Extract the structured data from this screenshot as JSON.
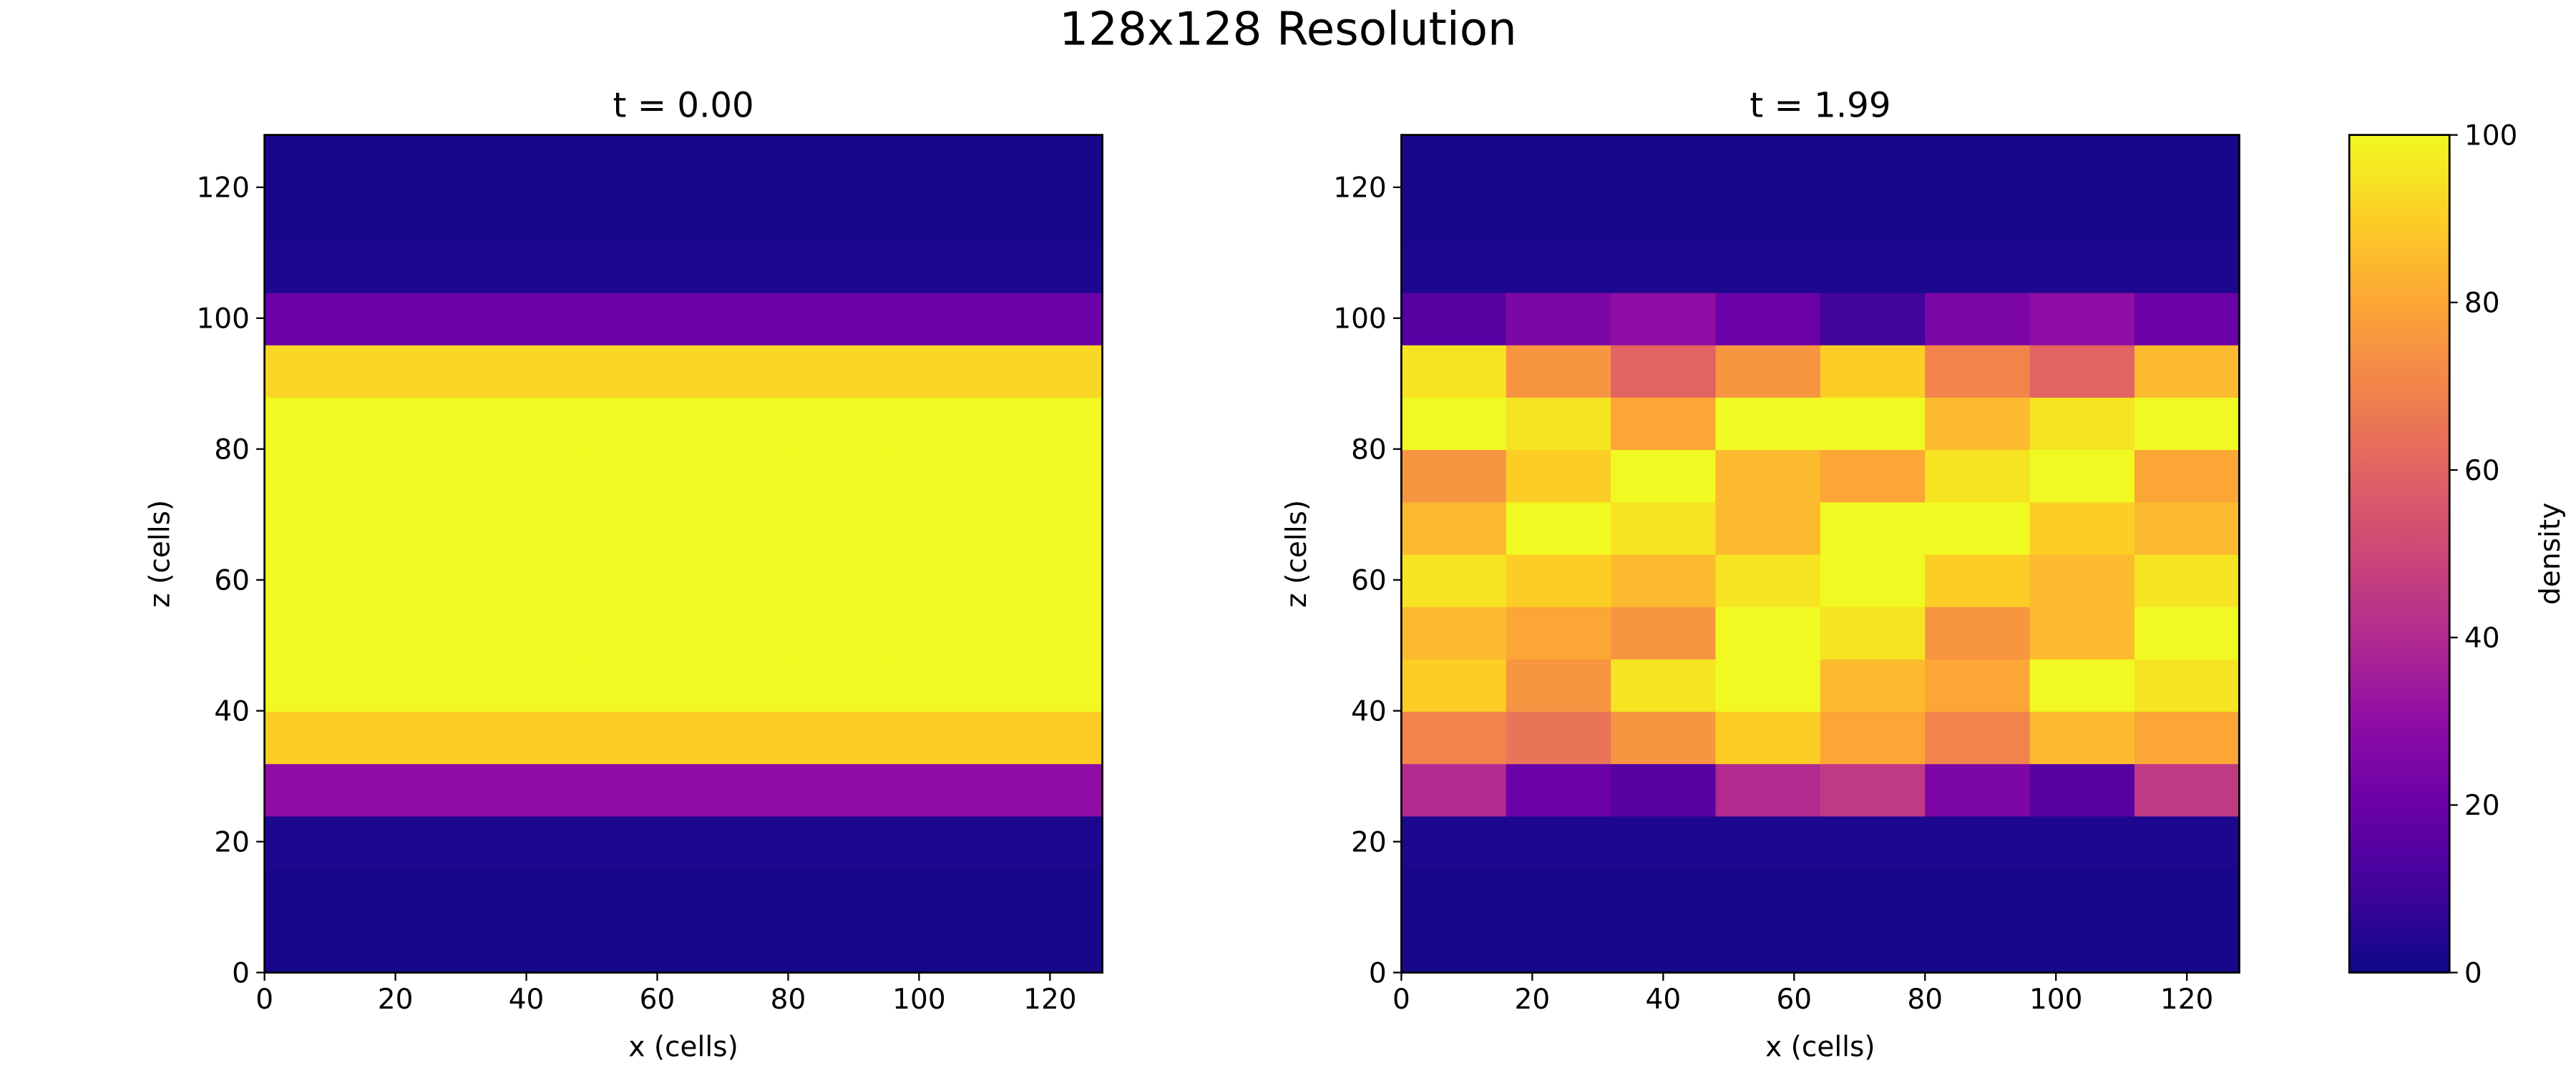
{
  "title": "128x128 Resolution",
  "colorbar": {
    "label": "density",
    "colormap": "plasma",
    "lim": [
      0,
      100
    ],
    "ticks": [
      0,
      20,
      40,
      60,
      80,
      100
    ]
  },
  "chart_data": [
    {
      "type": "heatmap",
      "title": "t = 0.00",
      "xlabel": "x (cells)",
      "ylabel": "z (cells)",
      "xlim": [
        0,
        128
      ],
      "ylim": [
        0,
        128
      ],
      "xticks": [
        0,
        20,
        40,
        60,
        80,
        100,
        120
      ],
      "yticks": [
        0,
        20,
        40,
        60,
        80,
        100,
        120
      ],
      "z": [
        [
          2,
          2,
          2,
          2,
          2,
          2,
          2,
          2
        ],
        [
          2,
          2,
          2,
          2,
          2,
          2,
          2,
          2
        ],
        [
          3,
          3,
          3,
          3,
          3,
          3,
          3,
          3
        ],
        [
          30,
          30,
          30,
          30,
          30,
          30,
          30,
          30
        ],
        [
          90,
          90,
          90,
          90,
          90,
          90,
          90,
          90
        ],
        [
          100,
          100,
          100,
          100,
          100,
          100,
          100,
          100
        ],
        [
          100,
          100,
          100,
          100,
          100,
          100,
          100,
          100
        ],
        [
          100,
          100,
          100,
          100,
          100,
          100,
          100,
          100
        ],
        [
          100,
          100,
          100,
          100,
          100,
          100,
          100,
          100
        ],
        [
          100,
          100,
          100,
          100,
          100,
          100,
          100,
          100
        ],
        [
          100,
          100,
          100,
          100,
          100,
          100,
          100,
          100
        ],
        [
          92,
          92,
          92,
          92,
          92,
          92,
          92,
          92
        ],
        [
          20,
          20,
          20,
          20,
          20,
          20,
          20,
          20
        ],
        [
          3,
          3,
          3,
          3,
          3,
          3,
          3,
          3
        ],
        [
          2,
          2,
          2,
          2,
          2,
          2,
          2,
          2
        ],
        [
          2,
          2,
          2,
          2,
          2,
          2,
          2,
          2
        ]
      ]
    },
    {
      "type": "heatmap",
      "title": "t = 1.99",
      "xlabel": "x (cells)",
      "ylabel": "z (cells)",
      "xlim": [
        0,
        128
      ],
      "ylim": [
        0,
        128
      ],
      "xticks": [
        0,
        20,
        40,
        60,
        80,
        100,
        120
      ],
      "yticks": [
        0,
        20,
        40,
        60,
        80,
        100,
        120
      ],
      "z": [
        [
          2,
          2,
          2,
          2,
          2,
          2,
          2,
          2
        ],
        [
          2,
          2,
          2,
          2,
          2,
          2,
          2,
          2
        ],
        [
          3,
          3,
          3,
          3,
          3,
          3,
          3,
          3
        ],
        [
          40,
          20,
          15,
          40,
          45,
          25,
          15,
          45
        ],
        [
          70,
          65,
          75,
          90,
          80,
          70,
          85,
          80
        ],
        [
          90,
          75,
          95,
          100,
          85,
          80,
          100,
          95
        ],
        [
          85,
          80,
          75,
          100,
          95,
          75,
          85,
          100
        ],
        [
          95,
          90,
          85,
          95,
          100,
          90,
          85,
          95
        ],
        [
          85,
          100,
          95,
          85,
          100,
          100,
          90,
          85
        ],
        [
          75,
          90,
          100,
          85,
          80,
          95,
          100,
          80
        ],
        [
          100,
          95,
          80,
          100,
          100,
          85,
          95,
          100
        ],
        [
          95,
          75,
          60,
          75,
          90,
          70,
          60,
          85
        ],
        [
          15,
          25,
          30,
          20,
          10,
          25,
          30,
          20
        ],
        [
          3,
          3,
          3,
          3,
          3,
          3,
          3,
          3
        ],
        [
          2,
          2,
          2,
          2,
          2,
          2,
          2,
          2
        ],
        [
          2,
          2,
          2,
          2,
          2,
          2,
          2,
          2
        ]
      ]
    }
  ]
}
